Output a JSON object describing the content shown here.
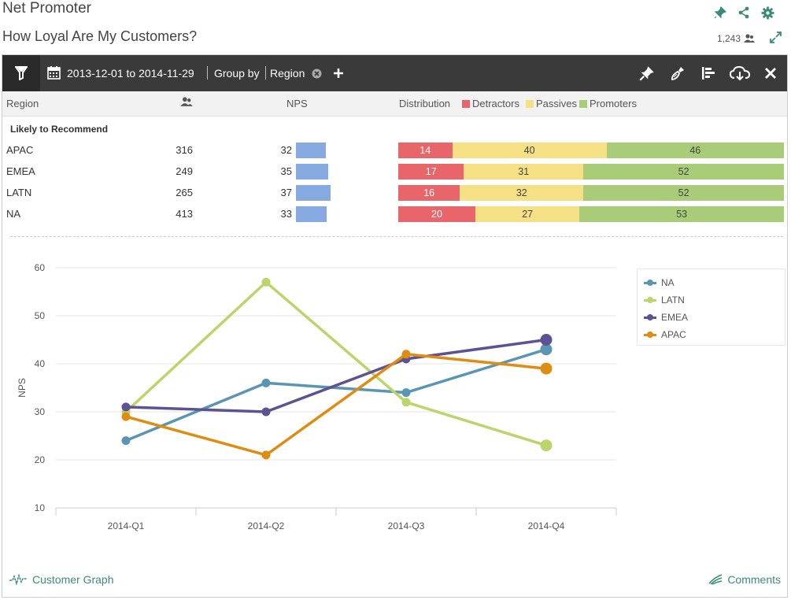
{
  "header": {
    "title": "Net Promoter",
    "subtitle": "How Loyal Are My Customers?",
    "respondents": "1,243",
    "icons": [
      "pin-icon",
      "share-icon",
      "gear-icon",
      "expand-icon",
      "users-icon"
    ]
  },
  "toolbar": {
    "date_range": "2013-12-01 to 2014-11-29",
    "group_by_label": "Group by",
    "group_by_value": "Region",
    "icons": [
      "filter-icon",
      "calendar-icon",
      "clear-icon",
      "plus-icon",
      "pin-icon",
      "broom-icon",
      "sort-bars-icon",
      "cloud-download-icon",
      "close-icon"
    ]
  },
  "table": {
    "headers": {
      "region": "Region",
      "nps": "NPS",
      "distribution": "Distribution",
      "detractors": "Detractors",
      "passives": "Passives",
      "promoters": "Promoters"
    },
    "group_label": "Likely to Recommend",
    "rows": [
      {
        "region": "APAC",
        "count": "316",
        "nps": "32",
        "detractors": "14",
        "passives": "40",
        "promoters": "46"
      },
      {
        "region": "EMEA",
        "count": "249",
        "nps": "35",
        "detractors": "17",
        "passives": "31",
        "promoters": "52"
      },
      {
        "region": "LATN",
        "count": "265",
        "nps": "37",
        "detractors": "16",
        "passives": "32",
        "promoters": "52"
      },
      {
        "region": "NA",
        "count": "413",
        "nps": "33",
        "detractors": "20",
        "passives": "27",
        "promoters": "53"
      }
    ]
  },
  "colors": {
    "detractors": "#e8666a",
    "passives": "#f5e085",
    "promoters": "#a9cc79",
    "nps_bar": "#86aadf",
    "NA": "#5a96b4",
    "LATN": "#bcd56a",
    "EMEA": "#5e5293",
    "APAC": "#de8c12"
  },
  "chart_data": {
    "type": "line",
    "categories": [
      "2014-Q1",
      "2014-Q2",
      "2014-Q3",
      "2014-Q4"
    ],
    "ylabel": "NPS",
    "ylim": [
      10,
      60
    ],
    "yticks": [
      10,
      20,
      30,
      40,
      50,
      60
    ],
    "grid": true,
    "legend_position": "top-right",
    "series": [
      {
        "name": "NA",
        "values": [
          24,
          36,
          34,
          43
        ]
      },
      {
        "name": "LATN",
        "values": [
          30,
          57,
          32,
          23
        ]
      },
      {
        "name": "EMEA",
        "values": [
          31,
          30,
          41,
          45
        ]
      },
      {
        "name": "APAC",
        "values": [
          29,
          21,
          42,
          39
        ]
      }
    ]
  },
  "footer": {
    "customer_graph": "Customer Graph",
    "comments": "Comments"
  }
}
